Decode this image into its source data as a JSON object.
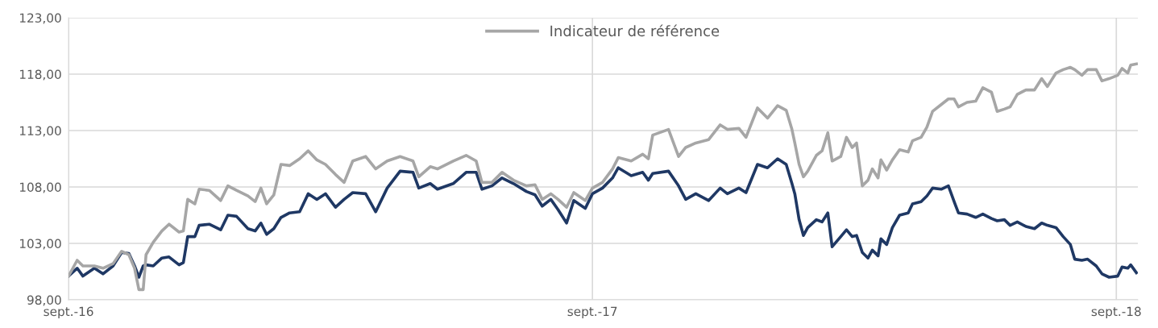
{
  "chart_data": {
    "type": "line",
    "x": [
      "2016-09-01",
      "2016-09-07",
      "2016-09-11",
      "2016-09-19",
      "2016-09-25",
      "2016-10-02",
      "2016-10-08",
      "2016-10-13",
      "2016-10-17",
      "2016-10-20",
      "2016-10-23",
      "2016-10-25",
      "2016-10-30",
      "2016-11-05",
      "2016-11-10",
      "2016-11-17",
      "2016-11-20",
      "2016-11-23",
      "2016-11-28",
      "2016-12-01",
      "2016-12-08",
      "2016-12-16",
      "2016-12-21",
      "2016-12-27",
      "2017-01-04",
      "2017-01-09",
      "2017-01-13",
      "2017-01-17",
      "2017-01-22",
      "2017-01-27",
      "2017-02-02",
      "2017-02-09",
      "2017-02-15",
      "2017-02-21",
      "2017-02-27",
      "2017-03-06",
      "2017-03-12",
      "2017-03-18",
      "2017-03-27",
      "2017-04-03",
      "2017-04-11",
      "2017-04-20",
      "2017-04-29",
      "2017-05-03",
      "2017-05-11",
      "2017-05-16",
      "2017-05-27",
      "2017-06-05",
      "2017-06-12",
      "2017-06-16",
      "2017-06-23",
      "2017-06-30",
      "2017-07-08",
      "2017-07-17",
      "2017-07-23",
      "2017-07-28",
      "2017-08-03",
      "2017-08-08",
      "2017-08-14",
      "2017-08-19",
      "2017-08-27",
      "2017-09-01",
      "2017-09-08",
      "2017-09-15",
      "2017-09-19",
      "2017-09-28",
      "2017-10-06",
      "2017-10-10",
      "2017-10-13",
      "2017-10-24",
      "2017-10-31",
      "2017-11-05",
      "2017-11-12",
      "2017-11-21",
      "2017-11-29",
      "2017-12-04",
      "2017-12-12",
      "2017-12-17",
      "2017-12-25",
      "2018-01-01",
      "2018-01-08",
      "2018-01-14",
      "2018-01-18",
      "2018-01-20",
      "2018-01-23",
      "2018-01-26",
      "2018-01-29",
      "2018-02-04",
      "2018-02-08",
      "2018-02-12",
      "2018-02-15",
      "2018-02-21",
      "2018-02-25",
      "2018-03-01",
      "2018-03-04",
      "2018-03-08",
      "2018-03-12",
      "2018-03-15",
      "2018-03-19",
      "2018-03-21",
      "2018-03-25",
      "2018-03-29",
      "2018-04-03",
      "2018-04-09",
      "2018-04-12",
      "2018-04-18",
      "2018-04-22",
      "2018-04-26",
      "2018-05-02",
      "2018-05-07",
      "2018-05-11",
      "2018-05-14",
      "2018-05-20",
      "2018-05-26",
      "2018-05-31",
      "2018-06-06",
      "2018-06-10",
      "2018-06-15",
      "2018-06-19",
      "2018-06-24",
      "2018-06-30",
      "2018-07-06",
      "2018-07-11",
      "2018-07-15",
      "2018-07-21",
      "2018-07-26",
      "2018-07-31",
      "2018-08-03",
      "2018-08-08",
      "2018-08-12",
      "2018-08-18",
      "2018-08-22",
      "2018-08-27",
      "2018-09-02",
      "2018-09-05",
      "2018-09-09",
      "2018-09-11",
      "2018-09-15"
    ],
    "series": [
      {
        "color": "#1f3864",
        "values": [
          100.1,
          100.8,
          100.1,
          100.8,
          100.3,
          101.0,
          102.2,
          102.1,
          101.0,
          100.0,
          101.0,
          101.1,
          101.0,
          101.7,
          101.8,
          101.1,
          101.3,
          103.6,
          103.6,
          104.6,
          104.7,
          104.2,
          105.5,
          105.4,
          104.3,
          104.1,
          104.8,
          103.8,
          104.3,
          105.3,
          105.7,
          105.8,
          107.4,
          106.9,
          107.4,
          106.2,
          106.9,
          107.5,
          107.4,
          105.8,
          107.9,
          109.4,
          109.3,
          107.9,
          108.3,
          107.8,
          108.3,
          109.3,
          109.3,
          107.8,
          108.1,
          108.8,
          108.3,
          107.6,
          107.3,
          106.3,
          106.9,
          106.0,
          104.8,
          106.8,
          106.1,
          107.4,
          107.9,
          108.8,
          109.7,
          109.0,
          109.3,
          108.6,
          109.2,
          109.4,
          108.1,
          106.9,
          107.4,
          106.8,
          107.9,
          107.4,
          107.9,
          107.5,
          110.0,
          109.7,
          110.5,
          110.0,
          108.3,
          107.4,
          105.1,
          103.7,
          104.4,
          105.1,
          104.9,
          105.7,
          102.7,
          103.6,
          104.2,
          103.6,
          103.7,
          102.2,
          101.7,
          102.4,
          101.9,
          103.4,
          102.9,
          104.4,
          105.5,
          105.7,
          106.5,
          106.7,
          107.2,
          107.9,
          107.8,
          108.1,
          106.7,
          105.7,
          105.6,
          105.3,
          105.6,
          105.2,
          105.0,
          105.1,
          104.6,
          104.9,
          104.5,
          104.3,
          104.8,
          104.6,
          104.4,
          103.6,
          102.9,
          101.6,
          101.5,
          101.6,
          101.0,
          100.3,
          100.0,
          100.1,
          100.9,
          100.8,
          101.1,
          100.4
        ]
      },
      {
        "name": "Indicateur de référence",
        "color": "#a6a6a6",
        "values": [
          100.1,
          101.5,
          101.0,
          101.0,
          100.8,
          101.2,
          102.3,
          102.0,
          100.8,
          98.9,
          98.9,
          102.0,
          103.1,
          104.1,
          104.7,
          104.0,
          104.1,
          106.9,
          106.5,
          107.8,
          107.7,
          106.8,
          108.1,
          107.7,
          107.2,
          106.7,
          107.9,
          106.5,
          107.3,
          110.0,
          109.9,
          110.5,
          111.2,
          110.4,
          110.0,
          109.1,
          108.4,
          110.3,
          110.7,
          109.6,
          110.3,
          110.7,
          110.3,
          108.9,
          109.8,
          109.6,
          110.3,
          110.8,
          110.3,
          108.4,
          108.4,
          109.3,
          108.6,
          108.1,
          108.2,
          106.9,
          107.4,
          106.9,
          106.2,
          107.5,
          106.8,
          107.9,
          108.4,
          109.6,
          110.6,
          110.3,
          110.9,
          110.5,
          112.6,
          113.1,
          110.7,
          111.5,
          111.9,
          112.2,
          113.5,
          113.1,
          113.2,
          112.4,
          115.0,
          114.1,
          115.2,
          114.8,
          113.1,
          111.9,
          110.0,
          108.9,
          109.4,
          110.8,
          111.2,
          112.8,
          110.3,
          110.7,
          112.4,
          111.5,
          111.9,
          108.1,
          108.6,
          109.6,
          108.8,
          110.4,
          109.5,
          110.4,
          111.3,
          111.1,
          112.1,
          112.4,
          113.3,
          114.7,
          115.3,
          115.8,
          115.8,
          115.1,
          115.5,
          115.6,
          116.8,
          116.4,
          114.7,
          114.9,
          115.1,
          116.2,
          116.6,
          116.6,
          117.6,
          116.9,
          118.1,
          118.4,
          118.6,
          118.4,
          117.9,
          118.4,
          118.4,
          117.4,
          117.6,
          117.9,
          118.5,
          118.1,
          118.8,
          118.9
        ]
      }
    ],
    "xlim": [
      "2016-09-01",
      "2018-09-16"
    ],
    "xticks": [
      {
        "value": "2016-09-01",
        "label": "sept.-16"
      },
      {
        "value": "2017-09-01",
        "label": "sept.-17"
      },
      {
        "value": "2018-09-01",
        "label": "sept.-18"
      }
    ],
    "ylim": [
      98,
      123
    ],
    "yticks": [
      {
        "value": 98,
        "label": "98,00"
      },
      {
        "value": 103,
        "label": "103,00"
      },
      {
        "value": 108,
        "label": "108,00"
      },
      {
        "value": 113,
        "label": "113,00"
      },
      {
        "value": 118,
        "label": "118,00"
      },
      {
        "value": 123,
        "label": "123,00"
      }
    ],
    "grid": true,
    "legend": "top",
    "marker": "none",
    "line_style": "solid"
  }
}
